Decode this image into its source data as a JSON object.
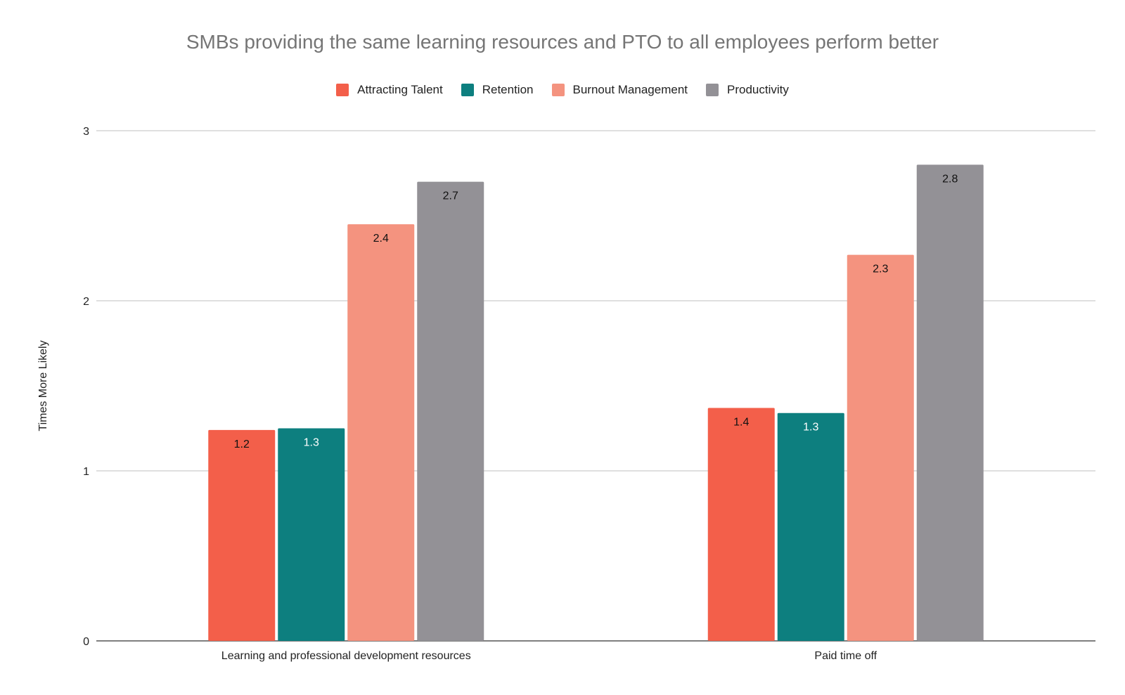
{
  "chart_data": {
    "type": "bar",
    "title": "SMBs providing the same learning resources and PTO to all employees perform better",
    "xlabel": "",
    "ylabel": "Times More Likely",
    "ylim": [
      0,
      3
    ],
    "yticks": [
      "0",
      "1",
      "2",
      "3"
    ],
    "grid": true,
    "legend_position": "top",
    "categories": [
      "Learning and professional development resources",
      "Paid time off"
    ],
    "series": [
      {
        "name": "Attracting Talent",
        "color": "#f35f4a",
        "values": [
          1.24,
          1.37
        ],
        "labels": [
          "1.2",
          "1.4"
        ],
        "label_color": "#111111"
      },
      {
        "name": "Retention",
        "color": "#0d7f7f",
        "values": [
          1.25,
          1.34
        ],
        "labels": [
          "1.3",
          "1.3"
        ],
        "label_color": "#ffffff"
      },
      {
        "name": "Burnout Management",
        "color": "#f4937f",
        "values": [
          2.45,
          2.27
        ],
        "labels": [
          "2.4",
          "2.3"
        ],
        "label_color": "#111111"
      },
      {
        "name": "Productivity",
        "color": "#939196",
        "values": [
          2.7,
          2.8
        ],
        "labels": [
          "2.7",
          "2.8"
        ],
        "label_color": "#111111"
      }
    ]
  }
}
